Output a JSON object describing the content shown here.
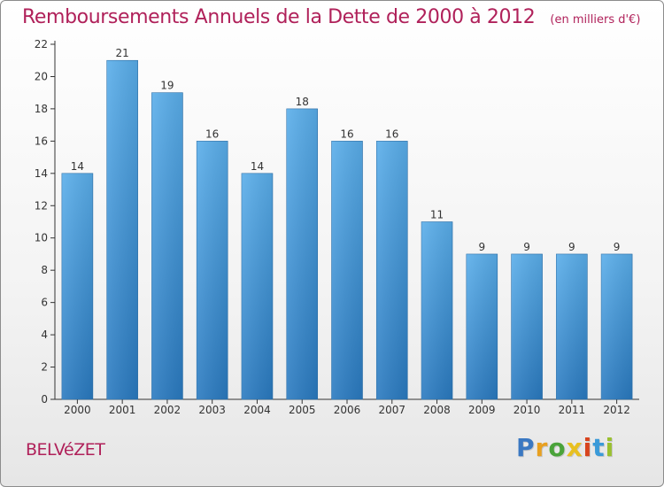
{
  "header": {
    "title": "Remboursements Annuels de la Dette de 2000 à 2012",
    "subtitle": "(en milliers d'€)"
  },
  "footer": {
    "municipality": "BELVéZET",
    "logo_letters": [
      "P",
      "r",
      "o",
      "x",
      "i",
      "t",
      "i"
    ]
  },
  "colors": {
    "title": "#b0215a",
    "bar_top": "#5aaeea",
    "bar_bottom": "#2a7ac0",
    "axis": "#333333",
    "grid": "#cccccc"
  },
  "chart_data": {
    "type": "bar",
    "title": "Remboursements Annuels de la Dette de 2000 à 2012",
    "subtitle": "(en milliers d'€)",
    "categories": [
      "2000",
      "2001",
      "2002",
      "2003",
      "2004",
      "2005",
      "2006",
      "2007",
      "2008",
      "2009",
      "2010",
      "2011",
      "2012"
    ],
    "values": [
      14,
      21,
      19,
      16,
      14,
      18,
      16,
      16,
      11,
      9,
      9,
      9,
      9
    ],
    "ylim": [
      0,
      22
    ],
    "yticks": [
      0,
      2,
      4,
      6,
      8,
      10,
      12,
      14,
      16,
      18,
      20,
      22
    ],
    "xlabel": "",
    "ylabel": "",
    "grid": false,
    "legend": "none"
  }
}
